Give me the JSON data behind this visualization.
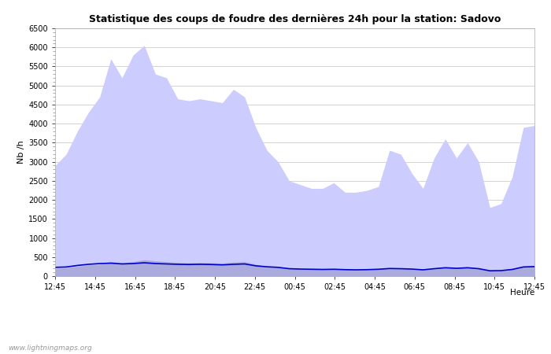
{
  "title": "Statistique des coups de foudre des dernières 24h pour la station: Sadovo",
  "xlabel": "Heure",
  "ylabel": "Nb /h",
  "ylim": [
    0,
    6500
  ],
  "yticks": [
    0,
    500,
    1000,
    1500,
    2000,
    2500,
    3000,
    3500,
    4000,
    4500,
    5000,
    5500,
    6000,
    6500
  ],
  "x_labels": [
    "12:45",
    "14:45",
    "16:45",
    "18:45",
    "20:45",
    "22:45",
    "00:45",
    "02:45",
    "04:45",
    "06:45",
    "08:45",
    "10:45",
    "12:45"
  ],
  "total_foudre_color": "#ccccff",
  "sadovo_color": "#aaaadd",
  "moyenne_color": "#0000cc",
  "background_color": "#ffffff",
  "grid_color": "#cccccc",
  "watermark": "www.lightningmaps.org",
  "total_foudre": [
    2900,
    3200,
    3800,
    4300,
    4700,
    5700,
    5200,
    5800,
    6050,
    5300,
    5200,
    4650,
    4600,
    4650,
    4600,
    4550,
    4900,
    4700,
    3900,
    3300,
    3000,
    2500,
    2400,
    2300,
    2300,
    2450,
    2200,
    2200,
    2250,
    2350,
    3300,
    3200,
    2700,
    2300,
    3100,
    3600,
    3100,
    3500,
    3000,
    1800,
    1900,
    2600,
    3900,
    3950
  ],
  "sadovo_foudre": [
    200,
    220,
    260,
    290,
    310,
    380,
    350,
    380,
    430,
    400,
    380,
    360,
    350,
    360,
    350,
    340,
    370,
    380,
    310,
    260,
    240,
    200,
    190,
    185,
    180,
    185,
    175,
    170,
    175,
    185,
    210,
    200,
    190,
    170,
    200,
    230,
    210,
    230,
    200,
    140,
    150,
    180,
    250,
    260
  ],
  "moyenne": [
    230,
    240,
    280,
    310,
    330,
    340,
    320,
    330,
    350,
    330,
    320,
    310,
    305,
    310,
    305,
    295,
    310,
    320,
    270,
    245,
    230,
    195,
    185,
    180,
    175,
    180,
    170,
    165,
    170,
    180,
    200,
    195,
    185,
    165,
    195,
    220,
    205,
    220,
    195,
    140,
    145,
    175,
    240,
    250
  ]
}
